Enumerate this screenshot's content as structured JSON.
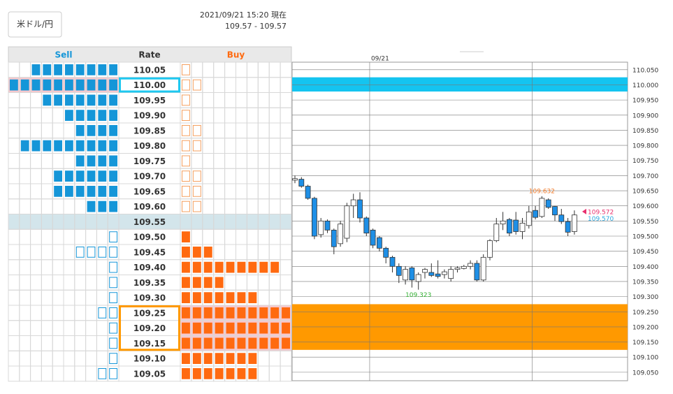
{
  "header": {
    "pair_button": "米ドル/円",
    "timestamp": "2021/09/21 15:20 現在",
    "quote": "109.57 - 109.57"
  },
  "order_book": {
    "columns": [
      "Sell",
      "Rate",
      "Buy"
    ],
    "sell_color": "#1596d8",
    "buy_color": "#ff6a10",
    "full_bg": "#f7c8cd",
    "current_bg": "#d3e5eb",
    "rows": [
      {
        "rate": "110.05",
        "sell": 8,
        "sell_open": 0,
        "buy": 0,
        "buy_open": 1
      },
      {
        "rate": "110.00",
        "sell": 10,
        "sell_open": 0,
        "buy": 0,
        "buy_open": 2,
        "highlight_color": "#1ec8f0"
      },
      {
        "rate": "109.95",
        "sell": 7,
        "sell_open": 0,
        "buy": 0,
        "buy_open": 1
      },
      {
        "rate": "109.90",
        "sell": 5,
        "sell_open": 0,
        "buy": 0,
        "buy_open": 1
      },
      {
        "rate": "109.85",
        "sell": 4,
        "sell_open": 0,
        "buy": 0,
        "buy_open": 2
      },
      {
        "rate": "109.80",
        "sell": 9,
        "sell_open": 0,
        "buy": 0,
        "buy_open": 2
      },
      {
        "rate": "109.75",
        "sell": 4,
        "sell_open": 0,
        "buy": 0,
        "buy_open": 1
      },
      {
        "rate": "109.70",
        "sell": 6,
        "sell_open": 0,
        "buy": 0,
        "buy_open": 2
      },
      {
        "rate": "109.65",
        "sell": 6,
        "sell_open": 0,
        "buy": 0,
        "buy_open": 2
      },
      {
        "rate": "109.60",
        "sell": 3,
        "sell_open": 0,
        "buy": 0,
        "buy_open": 2
      },
      {
        "rate": "109.55",
        "sell": 0,
        "sell_open": 0,
        "buy": 0,
        "buy_open": 0,
        "current": true
      },
      {
        "rate": "109.50",
        "sell": 0,
        "sell_open": 1,
        "buy": 1,
        "buy_open": 0
      },
      {
        "rate": "109.45",
        "sell": 0,
        "sell_open": 4,
        "buy": 3,
        "buy_open": 0
      },
      {
        "rate": "109.40",
        "sell": 0,
        "sell_open": 1,
        "buy": 9,
        "buy_open": 0
      },
      {
        "rate": "109.35",
        "sell": 0,
        "sell_open": 1,
        "buy": 4,
        "buy_open": 0
      },
      {
        "rate": "109.30",
        "sell": 0,
        "sell_open": 1,
        "buy": 7,
        "buy_open": 0
      },
      {
        "rate": "109.25",
        "sell": 0,
        "sell_open": 2,
        "buy": 10,
        "buy_open": 0,
        "highlight_color": "#ff9900"
      },
      {
        "rate": "109.20",
        "sell": 0,
        "sell_open": 1,
        "buy": 10,
        "buy_open": 0,
        "highlight_color": "#ff9900"
      },
      {
        "rate": "109.15",
        "sell": 0,
        "sell_open": 1,
        "buy": 10,
        "buy_open": 0,
        "highlight_color": "#ff9900"
      },
      {
        "rate": "109.10",
        "sell": 0,
        "sell_open": 1,
        "buy": 7,
        "buy_open": 0
      },
      {
        "rate": "109.05",
        "sell": 0,
        "sell_open": 2,
        "buy": 7,
        "buy_open": 0
      }
    ]
  },
  "chart_data": {
    "type": "candlestick",
    "categories": [
      null,
      null,
      null,
      null,
      null,
      null,
      null,
      null,
      null,
      null,
      null,
      null,
      "09/21",
      null,
      null,
      null,
      null,
      null,
      null,
      null,
      null,
      null,
      null,
      null,
      null,
      null,
      null,
      null,
      null,
      null,
      null,
      null,
      null,
      null,
      null,
      null,
      null,
      null,
      null,
      null,
      null,
      null,
      null,
      null
    ],
    "open": [
      109.685,
      109.688,
      109.665,
      109.625,
      109.505,
      109.55,
      109.52,
      109.475,
      109.493,
      109.6,
      109.62,
      109.56,
      109.52,
      109.495,
      109.46,
      109.43,
      109.4,
      109.355,
      109.395,
      109.35,
      109.38,
      109.38,
      109.375,
      109.373,
      109.36,
      109.39,
      109.393,
      109.4,
      109.41,
      109.355,
      109.43,
      109.485,
      109.54,
      109.555,
      109.553,
      109.515,
      109.535,
      109.585,
      109.565,
      109.62,
      109.598,
      109.57,
      109.548,
      109.515
    ],
    "high": [
      109.7,
      109.695,
      109.67,
      109.63,
      109.56,
      109.555,
      109.525,
      109.55,
      109.61,
      109.64,
      109.645,
      109.565,
      109.525,
      109.5,
      109.465,
      109.435,
      109.41,
      109.4,
      109.4,
      109.38,
      109.395,
      109.41,
      109.42,
      109.39,
      109.4,
      109.4,
      109.405,
      109.42,
      109.42,
      109.44,
      109.49,
      109.56,
      109.58,
      109.56,
      109.58,
      109.56,
      109.6,
      109.6,
      109.632,
      109.625,
      109.6,
      109.59,
      109.56,
      109.585
    ],
    "low": [
      109.675,
      109.66,
      109.62,
      109.49,
      109.495,
      109.51,
      109.44,
      109.465,
      109.48,
      109.56,
      109.545,
      109.5,
      109.46,
      109.45,
      109.41,
      109.38,
      109.345,
      109.34,
      109.33,
      109.323,
      109.36,
      109.365,
      109.36,
      109.36,
      109.35,
      109.38,
      109.39,
      109.39,
      109.35,
      109.35,
      109.42,
      109.48,
      109.52,
      109.5,
      109.505,
      109.49,
      109.525,
      109.555,
      109.56,
      109.59,
      109.55,
      109.54,
      109.5,
      109.505
    ],
    "close": [
      109.69,
      109.665,
      109.625,
      109.5,
      109.55,
      109.52,
      109.465,
      109.54,
      109.6,
      109.62,
      109.56,
      109.51,
      109.47,
      109.46,
      109.43,
      109.4,
      109.37,
      109.39,
      109.355,
      109.373,
      109.39,
      109.37,
      109.367,
      109.382,
      109.39,
      109.395,
      109.4,
      109.41,
      109.355,
      109.43,
      109.485,
      109.54,
      109.55,
      109.51,
      109.515,
      109.543,
      109.58,
      109.562,
      109.625,
      109.595,
      109.57,
      109.548,
      109.513,
      109.57
    ],
    "up_color": "#ffffff",
    "down_color": "#1e8fe6",
    "wick_color": "#333333",
    "ylim": [
      109.022,
      110.075
    ],
    "yticks": [
      {
        "value": 110.05,
        "label": "110.050"
      },
      {
        "value": 110.0,
        "label": "110.000"
      },
      {
        "value": 109.95,
        "label": "109.950"
      },
      {
        "value": 109.9,
        "label": "109.900"
      },
      {
        "value": 109.85,
        "label": "109.850"
      },
      {
        "value": 109.8,
        "label": "109.800"
      },
      {
        "value": 109.75,
        "label": "109.750"
      },
      {
        "value": 109.7,
        "label": "109.700"
      },
      {
        "value": 109.65,
        "label": "109.650"
      },
      {
        "value": 109.6,
        "label": "109.600"
      },
      {
        "value": 109.55,
        "label": "109.550"
      },
      {
        "value": 109.5,
        "label": "109.500"
      },
      {
        "value": 109.45,
        "label": "109.450"
      },
      {
        "value": 109.4,
        "label": "109.400"
      },
      {
        "value": 109.35,
        "label": "109.350"
      },
      {
        "value": 109.3,
        "label": "109.300"
      },
      {
        "value": 109.25,
        "label": "109.250"
      },
      {
        "value": 109.2,
        "label": "109.200"
      },
      {
        "value": 109.15,
        "label": "109.150"
      },
      {
        "value": 109.1,
        "label": "109.100"
      },
      {
        "value": 109.05,
        "label": "109.050"
      }
    ],
    "grid": true,
    "xgrid": [
      11.5,
      36.5
    ],
    "bands": [
      {
        "from": 109.978,
        "to": 110.025,
        "color": "#14c4f0"
      },
      {
        "from": 109.124,
        "to": 109.275,
        "color": "#ff9900"
      }
    ],
    "annotations": [
      {
        "value": 109.632,
        "index": 38,
        "color": "#f07a28",
        "side": "above"
      },
      {
        "value": 109.323,
        "index": 19,
        "color": "#33b033",
        "side": "below"
      }
    ],
    "price_lines": [
      {
        "value": 109.572,
        "color": "#e8306e"
      },
      {
        "value": 109.57,
        "label": "109.570",
        "color": "#2aa8e0"
      }
    ]
  }
}
